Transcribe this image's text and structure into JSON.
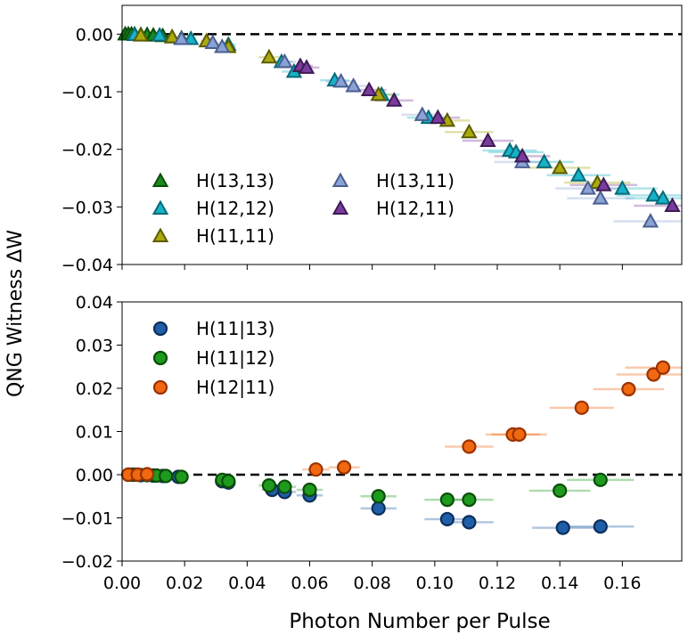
{
  "ylabel": "QNG Witness ΔW",
  "xlabel": "Photon Number per Pulse",
  "chart_data": [
    {
      "type": "scatter",
      "xlim": [
        0.0,
        0.179
      ],
      "ylim": [
        -0.04,
        0.005
      ],
      "xticks": [],
      "yticks": [
        0.0,
        -0.01,
        -0.02,
        -0.03,
        -0.04
      ],
      "ytick_labels": [
        "0.00",
        "−0.01",
        "−0.02",
        "−0.03",
        "−0.04"
      ],
      "reference_line": 0.0,
      "legend": "lower-left",
      "marker": "triangle",
      "series": [
        {
          "name": "H(13,13)",
          "fill": "#1b8a1b",
          "edge": "#0a4d0a",
          "x": [
            0.001,
            0.002,
            0.003,
            0.004,
            0.006,
            0.008,
            0.01,
            0.013,
            0.016,
            0.019
          ],
          "y": [
            0.0,
            0.0,
            0.0,
            0.0,
            -0.0001,
            -0.0001,
            -0.0002,
            -0.0003,
            -0.0005,
            -0.0007
          ]
        },
        {
          "name": "H(12,12)",
          "fill": "#17b2c7",
          "edge": "#0b6a78",
          "x": [
            0.004,
            0.012,
            0.022,
            0.034,
            0.051,
            0.055,
            0.068,
            0.083,
            0.098,
            0.124,
            0.126,
            0.135,
            0.146,
            0.16,
            0.17,
            0.173
          ],
          "y": [
            -0.0001,
            -0.0002,
            -0.0008,
            -0.0018,
            -0.0048,
            -0.0065,
            -0.008,
            -0.0105,
            -0.0145,
            -0.0202,
            -0.0205,
            -0.0222,
            -0.0245,
            -0.0268,
            -0.028,
            -0.0285
          ]
        },
        {
          "name": "H(11,11)",
          "fill": "#aaaa10",
          "edge": "#5c5c00",
          "x": [
            0.006,
            0.016,
            0.027,
            0.034,
            0.047,
            0.082,
            0.104,
            0.111,
            0.14,
            0.152
          ],
          "y": [
            -0.0002,
            -0.0005,
            -0.0012,
            -0.0022,
            -0.004,
            -0.0105,
            -0.015,
            -0.017,
            -0.0232,
            -0.0258
          ]
        },
        {
          "name": "H(13,11)",
          "fill": "#8aa2d4",
          "edge": "#4a5f91",
          "x": [
            0.019,
            0.029,
            0.032,
            0.052,
            0.07,
            0.074,
            0.096,
            0.128,
            0.149,
            0.153,
            0.169
          ],
          "y": [
            -0.0008,
            -0.0015,
            -0.0022,
            -0.0048,
            -0.0082,
            -0.009,
            -0.014,
            -0.0222,
            -0.0268,
            -0.0285,
            -0.0325
          ]
        },
        {
          "name": "H(12,11)",
          "fill": "#7a3c9c",
          "edge": "#3e1a55",
          "x": [
            0.057,
            0.059,
            0.079,
            0.087,
            0.101,
            0.117,
            0.128,
            0.154,
            0.176
          ],
          "y": [
            -0.0055,
            -0.0058,
            -0.0097,
            -0.0115,
            -0.0145,
            -0.0185,
            -0.0212,
            -0.0262,
            -0.0298
          ]
        }
      ]
    },
    {
      "type": "scatter",
      "xlim": [
        0.0,
        0.179
      ],
      "ylim": [
        -0.02,
        0.04
      ],
      "xticks": [
        0.0,
        0.02,
        0.04,
        0.06,
        0.08,
        0.1,
        0.12,
        0.14,
        0.16
      ],
      "xtick_labels": [
        "0.00",
        "0.02",
        "0.04",
        "0.06",
        "0.08",
        "0.10",
        "0.12",
        "0.14",
        "0.16"
      ],
      "yticks": [
        0.04,
        0.03,
        0.02,
        0.01,
        0.0,
        -0.01,
        -0.02
      ],
      "ytick_labels": [
        "0.04",
        "0.03",
        "0.02",
        "0.01",
        "0.00",
        "−0.01",
        "−0.02"
      ],
      "reference_line": 0.0,
      "legend": "upper-left",
      "marker": "circle",
      "series": [
        {
          "name": "H(11|13)",
          "fill": "#1f5fa8",
          "edge": "#0d2e5a",
          "x": [
            0.002,
            0.004,
            0.006,
            0.01,
            0.013,
            0.018,
            0.032,
            0.034,
            0.048,
            0.052,
            0.06,
            0.082,
            0.104,
            0.111,
            0.141,
            0.153
          ],
          "y": [
            0.0,
            0.0,
            -0.0001,
            -0.0002,
            -0.0003,
            -0.0005,
            -0.0015,
            -0.0018,
            -0.0035,
            -0.004,
            -0.0048,
            -0.0078,
            -0.0103,
            -0.011,
            -0.0123,
            -0.012
          ]
        },
        {
          "name": "H(11|12)",
          "fill": "#1e9a1e",
          "edge": "#0a4d0a",
          "x": [
            0.003,
            0.005,
            0.008,
            0.011,
            0.014,
            0.019,
            0.032,
            0.034,
            0.047,
            0.052,
            0.06,
            0.082,
            0.104,
            0.111,
            0.14,
            0.153
          ],
          "y": [
            0.0,
            0.0,
            -0.0001,
            -0.0002,
            -0.0003,
            -0.0005,
            -0.0012,
            -0.0015,
            -0.0025,
            -0.0028,
            -0.0035,
            -0.005,
            -0.0058,
            -0.0058,
            -0.0037,
            -0.0012
          ]
        },
        {
          "name": "H(12|11)",
          "fill": "#f06810",
          "edge": "#9a3200",
          "x": [
            0.002,
            0.005,
            0.008,
            0.062,
            0.071,
            0.111,
            0.125,
            0.127,
            0.147,
            0.162,
            0.17,
            0.173
          ],
          "y": [
            0.0,
            0.0,
            0.0001,
            0.0012,
            0.0017,
            0.0065,
            0.0093,
            0.0093,
            0.0155,
            0.0198,
            0.0232,
            0.0248
          ]
        }
      ]
    }
  ]
}
